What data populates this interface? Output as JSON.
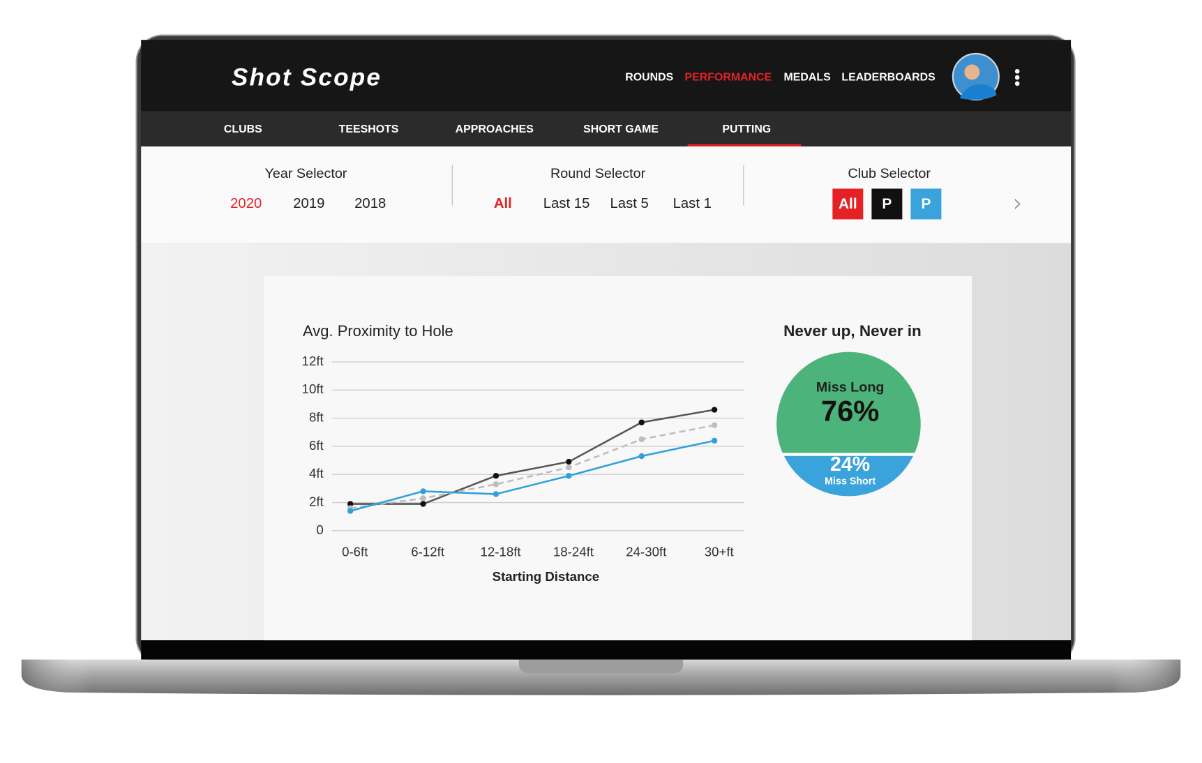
{
  "header": {
    "logo": "Shot Scope",
    "nav": [
      "ROUNDS",
      "PERFORMANCE",
      "MEDALS",
      "LEADERBOARDS"
    ],
    "active_nav": 1
  },
  "tabs": {
    "items": [
      "CLUBS",
      "TEESHOTS",
      "APPROACHES",
      "SHORT GAME",
      "PUTTING"
    ],
    "active": 4
  },
  "year_selector": {
    "title": "Year Selector",
    "options": [
      "2020",
      "2019",
      "2018"
    ],
    "active": 0
  },
  "round_selector": {
    "title": "Round Selector",
    "options": [
      "All",
      "Last 15",
      "Last 5",
      "Last 1"
    ],
    "active": 0
  },
  "club_selector": {
    "title": "Club Selector",
    "options": [
      {
        "label": "All",
        "color": "#e42226"
      },
      {
        "label": "P",
        "color": "#111111"
      },
      {
        "label": "P",
        "color": "#3aa3dc"
      }
    ]
  },
  "chart_data": [
    {
      "type": "line",
      "title": "Avg. Proximity to Hole",
      "x_label": "Starting Distance",
      "categories": [
        "0-6ft",
        "6-12ft",
        "12-18ft",
        "18-24ft",
        "24-30ft",
        "30+ft"
      ],
      "series": [
        {
          "color": "#555555",
          "style": "solid",
          "values": [
            1.9,
            1.9,
            3.9,
            4.9,
            7.7,
            8.6
          ]
        },
        {
          "color": "#bdbdbd",
          "style": "dashed",
          "values": [
            1.6,
            2.3,
            3.3,
            4.5,
            6.5,
            7.5
          ]
        },
        {
          "color": "#2fa0dc",
          "style": "solid",
          "values": [
            1.4,
            2.8,
            2.6,
            3.9,
            5.3,
            6.4
          ]
        }
      ],
      "ylim": [
        0,
        12
      ],
      "yticks": [
        0,
        {
          "value": 2,
          "label": "2ft"
        },
        {
          "value": 4,
          "label": "4ft"
        },
        {
          "value": 6,
          "label": "6ft"
        },
        {
          "value": 8,
          "label": "8ft"
        },
        {
          "value": 10,
          "label": "10ft"
        },
        {
          "value": 12,
          "label": "12ft"
        }
      ],
      "grid": true
    },
    {
      "type": "pie",
      "title": "Never up, Never in",
      "categories": [
        "Miss Long",
        "Miss Short"
      ],
      "values": [
        76,
        24
      ],
      "value_labels": [
        "76%",
        "24%"
      ],
      "colors": [
        "#4cb37a",
        "#3aa3dc"
      ]
    }
  ]
}
